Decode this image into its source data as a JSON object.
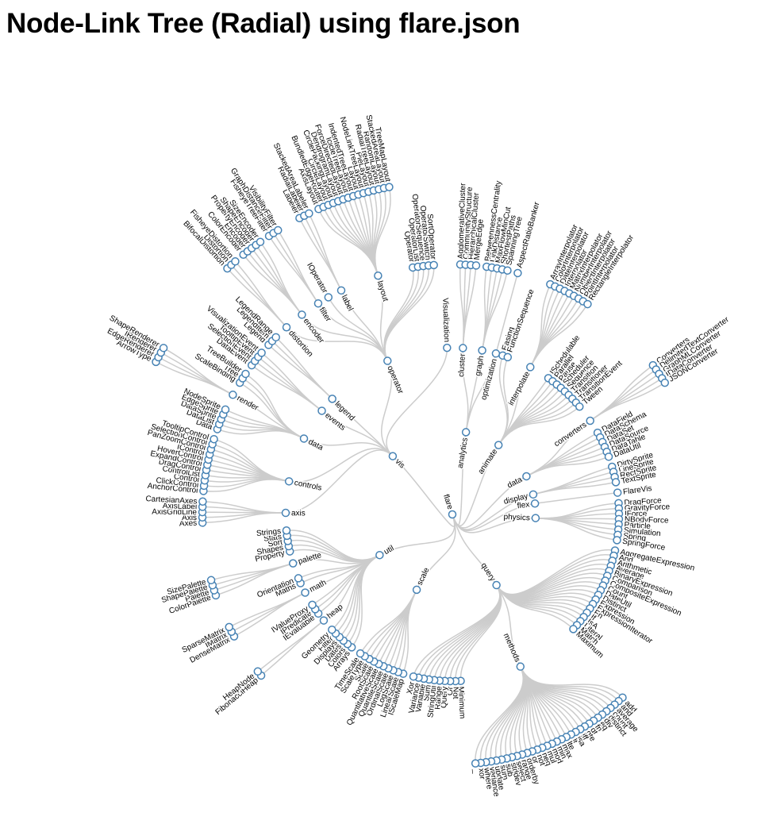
{
  "title": "Node-Link Tree (Radial) using flare.json",
  "tree": {
    "name": "flare",
    "children": [
      {
        "name": "analytics",
        "children": [
          {
            "name": "cluster",
            "children": [
              {
                "name": "AgglomerativeCluster"
              },
              {
                "name": "CommunityStructure"
              },
              {
                "name": "HierarchicalCluster"
              },
              {
                "name": "MergeEdge"
              }
            ]
          },
          {
            "name": "graph",
            "children": [
              {
                "name": "BetweennessCentrality"
              },
              {
                "name": "LinkDistance"
              },
              {
                "name": "MaxFlowMinCut"
              },
              {
                "name": "ShortestPaths"
              },
              {
                "name": "SpanningTree"
              }
            ]
          },
          {
            "name": "optimization",
            "children": [
              {
                "name": "AspectRatioBanker"
              }
            ]
          }
        ]
      },
      {
        "name": "animate",
        "children": [
          {
            "name": "Easing"
          },
          {
            "name": "FunctionSequence"
          },
          {
            "name": "interpolate",
            "children": [
              {
                "name": "ArrayInterpolator"
              },
              {
                "name": "ColorInterpolator"
              },
              {
                "name": "DateInterpolator"
              },
              {
                "name": "Interpolator"
              },
              {
                "name": "MatrixInterpolator"
              },
              {
                "name": "NumberInterpolator"
              },
              {
                "name": "ObjectInterpolator"
              },
              {
                "name": "PointInterpolator"
              },
              {
                "name": "RectangleInterpolator"
              }
            ]
          },
          {
            "name": "ISchedulable"
          },
          {
            "name": "Parallel"
          },
          {
            "name": "Pause"
          },
          {
            "name": "Scheduler"
          },
          {
            "name": "Sequence"
          },
          {
            "name": "Transition"
          },
          {
            "name": "Transitioner"
          },
          {
            "name": "TransitionEvent"
          },
          {
            "name": "Tween"
          }
        ]
      },
      {
        "name": "data",
        "children": [
          {
            "name": "converters",
            "children": [
              {
                "name": "Converters"
              },
              {
                "name": "DelimitedTextConverter"
              },
              {
                "name": "GraphMLConverter"
              },
              {
                "name": "IDataConverter"
              },
              {
                "name": "JSONConverter"
              }
            ]
          },
          {
            "name": "DataField"
          },
          {
            "name": "DataSchema"
          },
          {
            "name": "DataSet"
          },
          {
            "name": "DataSource"
          },
          {
            "name": "DataTable"
          },
          {
            "name": "DataUtil"
          }
        ]
      },
      {
        "name": "display",
        "children": [
          {
            "name": "DirtySprite"
          },
          {
            "name": "LineSprite"
          },
          {
            "name": "RectSprite"
          },
          {
            "name": "TextSprite"
          }
        ]
      },
      {
        "name": "flex",
        "children": [
          {
            "name": "FlareVis"
          }
        ]
      },
      {
        "name": "physics",
        "children": [
          {
            "name": "DragForce"
          },
          {
            "name": "GravityForce"
          },
          {
            "name": "IForce"
          },
          {
            "name": "NBodyForce"
          },
          {
            "name": "Particle"
          },
          {
            "name": "Simulation"
          },
          {
            "name": "Spring"
          },
          {
            "name": "SpringForce"
          }
        ]
      },
      {
        "name": "query",
        "children": [
          {
            "name": "AggregateExpression"
          },
          {
            "name": "And"
          },
          {
            "name": "Arithmetic"
          },
          {
            "name": "Average"
          },
          {
            "name": "BinaryExpression"
          },
          {
            "name": "Comparison"
          },
          {
            "name": "CompositeExpression"
          },
          {
            "name": "Count"
          },
          {
            "name": "DateUtil"
          },
          {
            "name": "Distinct"
          },
          {
            "name": "Expression"
          },
          {
            "name": "ExpressionIterator"
          },
          {
            "name": "Fn"
          },
          {
            "name": "If"
          },
          {
            "name": "IsA"
          },
          {
            "name": "Literal"
          },
          {
            "name": "Match"
          },
          {
            "name": "Maximum"
          },
          {
            "name": "methods",
            "children": [
              {
                "name": "add"
              },
              {
                "name": "and"
              },
              {
                "name": "average"
              },
              {
                "name": "count"
              },
              {
                "name": "distinct"
              },
              {
                "name": "div"
              },
              {
                "name": "eq"
              },
              {
                "name": "fn"
              },
              {
                "name": "gt"
              },
              {
                "name": "gte"
              },
              {
                "name": "iff"
              },
              {
                "name": "isa"
              },
              {
                "name": "lt"
              },
              {
                "name": "lte"
              },
              {
                "name": "max"
              },
              {
                "name": "min"
              },
              {
                "name": "mod"
              },
              {
                "name": "mul"
              },
              {
                "name": "neq"
              },
              {
                "name": "not"
              },
              {
                "name": "or"
              },
              {
                "name": "orderby"
              },
              {
                "name": "range"
              },
              {
                "name": "select"
              },
              {
                "name": "stddev"
              },
              {
                "name": "sub"
              },
              {
                "name": "sum"
              },
              {
                "name": "update"
              },
              {
                "name": "variance"
              },
              {
                "name": "where"
              },
              {
                "name": "xor"
              },
              {
                "name": "_"
              }
            ]
          },
          {
            "name": "Minimum"
          },
          {
            "name": "Not"
          },
          {
            "name": "Or"
          },
          {
            "name": "Query"
          },
          {
            "name": "Range"
          },
          {
            "name": "StringUtil"
          },
          {
            "name": "Sum"
          },
          {
            "name": "Variable"
          },
          {
            "name": "Variance"
          },
          {
            "name": "Xor"
          }
        ]
      },
      {
        "name": "scale",
        "children": [
          {
            "name": "IScaleMap"
          },
          {
            "name": "LinearScale"
          },
          {
            "name": "LogScale"
          },
          {
            "name": "OrdinalScale"
          },
          {
            "name": "QuantileScale"
          },
          {
            "name": "QuantitativeScale"
          },
          {
            "name": "RootScale"
          },
          {
            "name": "Scale"
          },
          {
            "name": "ScaleType"
          },
          {
            "name": "TimeScale"
          }
        ]
      },
      {
        "name": "util",
        "children": [
          {
            "name": "Arrays"
          },
          {
            "name": "Colors"
          },
          {
            "name": "Dates"
          },
          {
            "name": "Displays"
          },
          {
            "name": "Filter"
          },
          {
            "name": "Geometry"
          },
          {
            "name": "heap",
            "children": [
              {
                "name": "FibonacciHeap"
              },
              {
                "name": "HeapNode"
              }
            ]
          },
          {
            "name": "IEvaluable"
          },
          {
            "name": "IPredicate"
          },
          {
            "name": "IValueProxy"
          },
          {
            "name": "math",
            "children": [
              {
                "name": "DenseMatrix"
              },
              {
                "name": "IMatrix"
              },
              {
                "name": "SparseMatrix"
              }
            ]
          },
          {
            "name": "Maths"
          },
          {
            "name": "Orientation"
          },
          {
            "name": "palette",
            "children": [
              {
                "name": "ColorPalette"
              },
              {
                "name": "Palette"
              },
              {
                "name": "ShapePalette"
              },
              {
                "name": "SizePalette"
              }
            ]
          },
          {
            "name": "Property"
          },
          {
            "name": "Shapes"
          },
          {
            "name": "Sort"
          },
          {
            "name": "Stats"
          },
          {
            "name": "Strings"
          }
        ]
      },
      {
        "name": "vis",
        "children": [
          {
            "name": "axis",
            "children": [
              {
                "name": "Axes"
              },
              {
                "name": "Axis"
              },
              {
                "name": "AxisGridLine"
              },
              {
                "name": "AxisLabel"
              },
              {
                "name": "CartesianAxes"
              }
            ]
          },
          {
            "name": "controls",
            "children": [
              {
                "name": "AnchorControl"
              },
              {
                "name": "ClickControl"
              },
              {
                "name": "Control"
              },
              {
                "name": "ControlList"
              },
              {
                "name": "DragControl"
              },
              {
                "name": "ExpandControl"
              },
              {
                "name": "HoverControl"
              },
              {
                "name": "IControl"
              },
              {
                "name": "PanZoomControl"
              },
              {
                "name": "SelectionControl"
              },
              {
                "name": "TooltipControl"
              }
            ]
          },
          {
            "name": "data",
            "children": [
              {
                "name": "Data"
              },
              {
                "name": "DataList"
              },
              {
                "name": "DataSprite"
              },
              {
                "name": "EdgeSprite"
              },
              {
                "name": "NodeSprite"
              },
              {
                "name": "render",
                "children": [
                  {
                    "name": "ArrowType"
                  },
                  {
                    "name": "EdgeRenderer"
                  },
                  {
                    "name": "IRenderer"
                  },
                  {
                    "name": "ShapeRenderer"
                  }
                ]
              },
              {
                "name": "ScaleBinding"
              },
              {
                "name": "Tree"
              },
              {
                "name": "TreeBuilder"
              }
            ]
          },
          {
            "name": "events",
            "children": [
              {
                "name": "DataEvent"
              },
              {
                "name": "SelectionEvent"
              },
              {
                "name": "TooltipEvent"
              },
              {
                "name": "VisualizationEvent"
              }
            ]
          },
          {
            "name": "legend",
            "children": [
              {
                "name": "Legend"
              },
              {
                "name": "LegendItem"
              },
              {
                "name": "LegendRange"
              }
            ]
          },
          {
            "name": "operator",
            "children": [
              {
                "name": "distortion",
                "children": [
                  {
                    "name": "BifocalDistortion"
                  },
                  {
                    "name": "Distortion"
                  },
                  {
                    "name": "FisheyeDistortion"
                  }
                ]
              },
              {
                "name": "encoder",
                "children": [
                  {
                    "name": "ColorEncoder"
                  },
                  {
                    "name": "Encoder"
                  },
                  {
                    "name": "PropertyEncoder"
                  },
                  {
                    "name": "ShapeEncoder"
                  },
                  {
                    "name": "SizeEncoder"
                  }
                ]
              },
              {
                "name": "filter",
                "children": [
                  {
                    "name": "FisheyeTreeFilter"
                  },
                  {
                    "name": "GraphDistanceFilter"
                  },
                  {
                    "name": "VisibilityFilter"
                  }
                ]
              },
              {
                "name": "IOperator"
              },
              {
                "name": "label",
                "children": [
                  {
                    "name": "Labeler"
                  },
                  {
                    "name": "RadialLabeler"
                  },
                  {
                    "name": "StackedAreaLabeler"
                  }
                ]
              },
              {
                "name": "layout",
                "children": [
                  {
                    "name": "AxisLayout"
                  },
                  {
                    "name": "BundledEdgeRouter"
                  },
                  {
                    "name": "CircleLayout"
                  },
                  {
                    "name": "CirclePackingLayout"
                  },
                  {
                    "name": "DendrogramLayout"
                  },
                  {
                    "name": "ForceDirectedLayout"
                  },
                  {
                    "name": "IcicleTreeLayout"
                  },
                  {
                    "name": "IndentedTreeLayout"
                  },
                  {
                    "name": "Layout"
                  },
                  {
                    "name": "NodeLinkTreeLayout"
                  },
                  {
                    "name": "PieLayout"
                  },
                  {
                    "name": "RadialTreeLayout"
                  },
                  {
                    "name": "RandomLayout"
                  },
                  {
                    "name": "StackedAreaLayout"
                  },
                  {
                    "name": "TreeMapLayout"
                  }
                ]
              },
              {
                "name": "Operator"
              },
              {
                "name": "OperatorList"
              },
              {
                "name": "OperatorSequence"
              },
              {
                "name": "OperatorSwitch"
              },
              {
                "name": "SortOperator"
              }
            ]
          },
          {
            "name": "Visualization"
          }
        ]
      }
    ]
  }
}
